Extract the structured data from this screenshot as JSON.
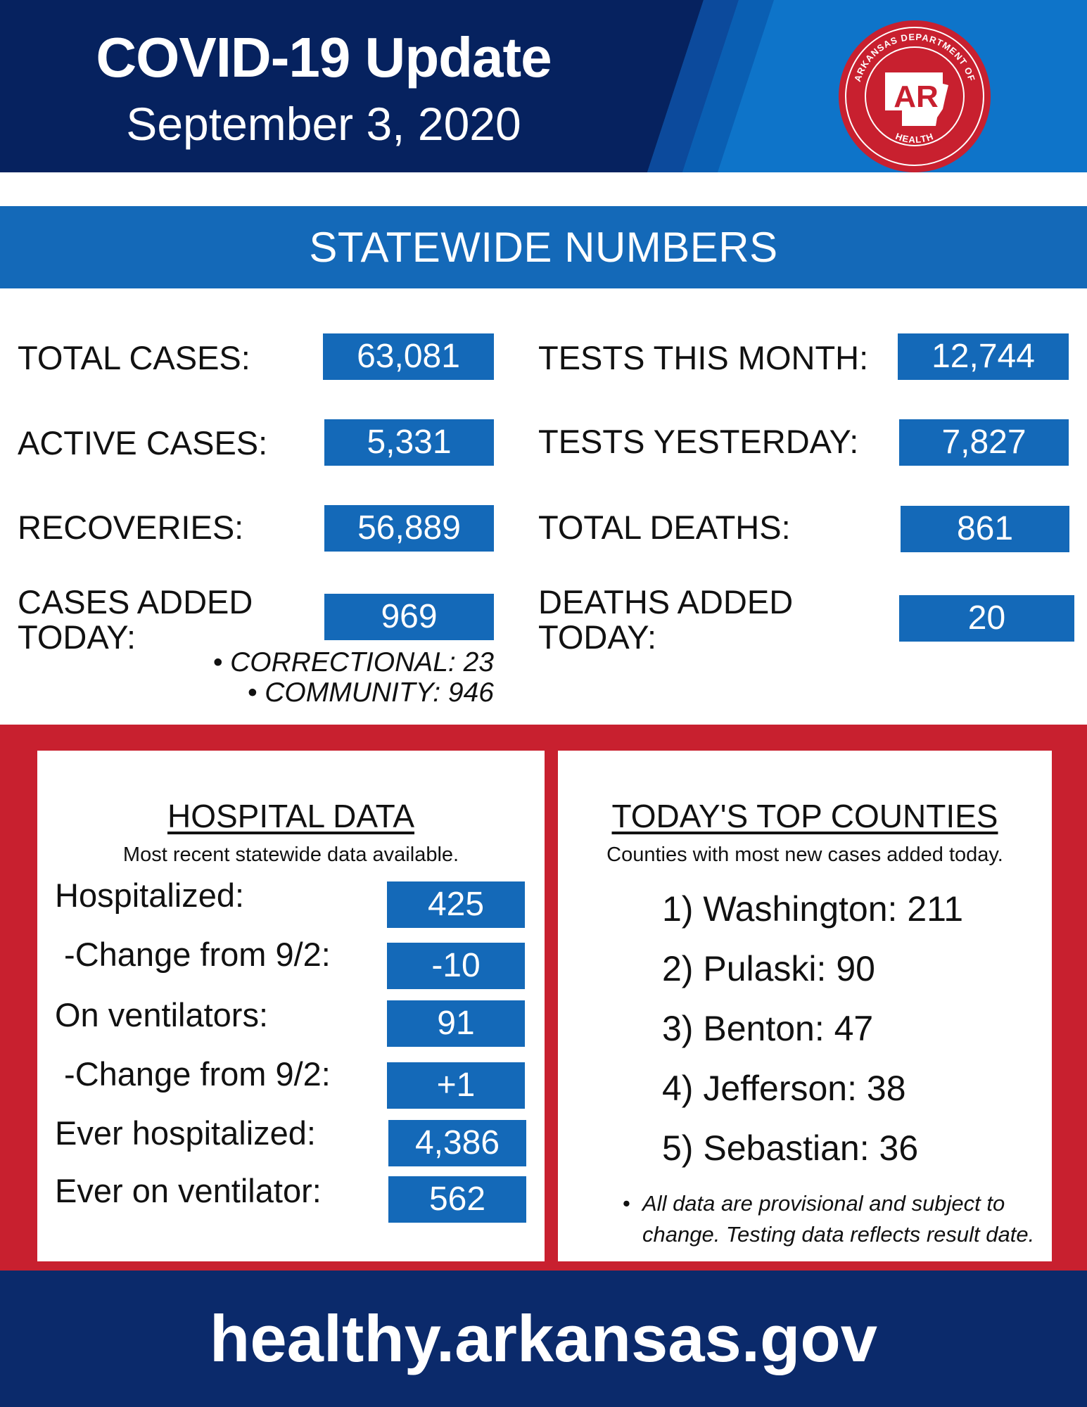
{
  "header": {
    "title": "COVID-19 Update",
    "date": "September 3, 2020",
    "seal": {
      "top_text": "ARKANSAS DEPARTMENT OF",
      "bottom_text": "HEALTH",
      "monogram": "AR"
    }
  },
  "statewide": {
    "banner": "STATEWIDE NUMBERS",
    "left": [
      {
        "label": "TOTAL CASES:",
        "value": "63,081"
      },
      {
        "label": "ACTIVE CASES:",
        "value": "5,331"
      },
      {
        "label": "RECOVERIES:",
        "value": "56,889"
      },
      {
        "label_line1": "CASES ADDED",
        "label_line2": "TODAY:",
        "value": "969"
      }
    ],
    "right": [
      {
        "label": "TESTS THIS MONTH:",
        "value": "12,744"
      },
      {
        "label": "TESTS YESTERDAY:",
        "value": "7,827"
      },
      {
        "label": "TOTAL DEATHS:",
        "value": "861"
      },
      {
        "label_line1": "DEATHS ADDED",
        "label_line2": "TODAY:",
        "value": "20"
      }
    ],
    "breakdown": [
      "• CORRECTIONAL: 23",
      "• COMMUNITY: 946"
    ]
  },
  "hospital": {
    "title": "HOSPITAL DATA",
    "subtitle": "Most recent statewide data available.",
    "rows": [
      {
        "label": "Hospitalized:",
        "value": "425"
      },
      {
        "label": " -Change from 9/2:",
        "value": "-10"
      },
      {
        "label": "On ventilators:",
        "value": "91"
      },
      {
        "label": " -Change from 9/2:",
        "value": "+1"
      },
      {
        "label": "Ever hospitalized:",
        "value": "4,386"
      },
      {
        "label": "Ever on ventilator:",
        "value": "562"
      }
    ]
  },
  "counties": {
    "title": "TODAY'S TOP COUNTIES",
    "subtitle": "Counties with most new cases added today.",
    "items": [
      "1) Washington: 211",
      "2) Pulaski: 90",
      "3) Benton: 47",
      "4) Jefferson: 38",
      "5) Sebastian: 36"
    ],
    "disclaimer": "All data are provisional and subject to change. Testing data reflects result date."
  },
  "footer": {
    "url": "healthy.arkansas.gov"
  },
  "colors": {
    "navy": "#0b2a6b",
    "blue": "#1469b8",
    "red": "#c8202f"
  }
}
